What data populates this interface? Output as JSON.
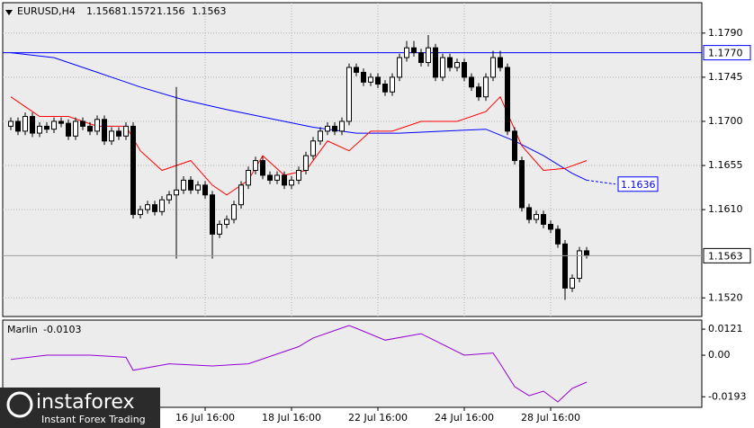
{
  "chart_data": [
    {
      "type": "candlestick",
      "title": "EURUSD,H4",
      "xlim": [
        -1.125,
        96
      ],
      "xticks": [
        {
          "value": 27,
          "label": "16 Jul 16:00"
        },
        {
          "value": 39,
          "label": "18 Jul 16:00"
        },
        {
          "value": 51,
          "label": "22 Jul 16:00"
        },
        {
          "value": 63,
          "label": "24 Jul 16:00"
        },
        {
          "value": 75,
          "label": "28 Jul 16:00"
        }
      ],
      "ylim": [
        1.1501,
        1.1821
      ],
      "yticks": [
        {
          "value": 1.179,
          "label": "1.1790"
        },
        1.1745,
        {
          "value": 1.17,
          "label": "1.1700"
        },
        1.1655,
        {
          "value": 1.161,
          "label": "1.1610"
        },
        {
          "value": 1.152,
          "label": "1.1520"
        }
      ],
      "grid": true,
      "up_color": "#ffffff",
      "down_color": "#000000",
      "open": [
        1.1695,
        1.17,
        1.169,
        1.1705,
        1.1688,
        1.1695,
        1.1692,
        1.17,
        1.1698,
        1.1685,
        1.17,
        1.1695,
        1.169,
        1.1702,
        1.168,
        1.169,
        1.1685,
        1.1695,
        1.1605,
        1.161,
        1.1615,
        1.1608,
        1.162,
        1.1625,
        1.163,
        1.164,
        1.163,
        1.1635,
        1.1625,
        1.1585,
        1.1595,
        1.16,
        1.1615,
        1.1635,
        1.165,
        1.166,
        1.1645,
        1.164,
        1.1645,
        1.1635,
        1.164,
        1.165,
        1.1665,
        1.168,
        1.169,
        1.1695,
        1.169,
        1.17,
        1.1755,
        1.175,
        1.174,
        1.1745,
        1.1738,
        1.173,
        1.1745,
        1.1765,
        1.1775,
        1.177,
        1.176,
        1.1775,
        1.1745,
        1.1765,
        1.1755,
        1.176,
        1.1745,
        1.1735,
        1.1725,
        1.1745,
        1.1765,
        1.1755,
        1.169,
        1.166,
        1.1612,
        1.16,
        1.1605,
        1.1595,
        1.159,
        1.1575,
        1.153,
        1.154,
        1.1568
      ],
      "high": [
        1.1704,
        1.1704,
        1.1709,
        1.1709,
        1.1699,
        1.1699,
        1.1704,
        1.1704,
        1.1702,
        1.1704,
        1.1704,
        1.1699,
        1.1706,
        1.1706,
        1.1694,
        1.1694,
        1.1699,
        1.1699,
        1.1614,
        1.1619,
        1.1619,
        1.1624,
        1.1629,
        1.1735,
        1.1644,
        1.1644,
        1.1639,
        1.1639,
        1.1629,
        1.1599,
        1.1604,
        1.1619,
        1.1639,
        1.1654,
        1.1664,
        1.1664,
        1.1649,
        1.1649,
        1.1649,
        1.1644,
        1.1654,
        1.1669,
        1.1684,
        1.1694,
        1.1699,
        1.1699,
        1.1704,
        1.1759,
        1.1759,
        1.1754,
        1.1749,
        1.1749,
        1.1742,
        1.1749,
        1.1769,
        1.1782,
        1.1782,
        1.1774,
        1.1788,
        1.1779,
        1.1769,
        1.1769,
        1.1764,
        1.1764,
        1.1749,
        1.1739,
        1.1749,
        1.1772,
        1.1772,
        1.1759,
        1.1694,
        1.1664,
        1.1616,
        1.1609,
        1.1609,
        1.1599,
        1.1594,
        1.1579,
        1.1544,
        1.1572,
        1.1572
      ],
      "low": [
        1.1691,
        1.1686,
        1.1686,
        1.1684,
        1.1684,
        1.1688,
        1.1688,
        1.1694,
        1.1681,
        1.1681,
        1.1691,
        1.1686,
        1.1686,
        1.1676,
        1.1676,
        1.1681,
        1.1681,
        1.1601,
        1.1601,
        1.1606,
        1.1604,
        1.1604,
        1.1616,
        1.156,
        1.1626,
        1.1626,
        1.1626,
        1.1621,
        1.156,
        1.1581,
        1.1591,
        1.1596,
        1.1611,
        1.1631,
        1.1646,
        1.1641,
        1.1636,
        1.1636,
        1.1631,
        1.1631,
        1.1636,
        1.1646,
        1.1661,
        1.1676,
        1.1686,
        1.1686,
        1.1686,
        1.1696,
        1.1746,
        1.1736,
        1.1736,
        1.1734,
        1.1726,
        1.1726,
        1.1741,
        1.1761,
        1.1766,
        1.1756,
        1.1756,
        1.1741,
        1.1741,
        1.1751,
        1.1751,
        1.1741,
        1.1731,
        1.1721,
        1.1721,
        1.1741,
        1.1751,
        1.1686,
        1.1656,
        1.1608,
        1.1596,
        1.1596,
        1.1591,
        1.1586,
        1.1571,
        1.1518,
        1.1526,
        1.1536,
        1.156
      ],
      "close": [
        1.17,
        1.169,
        1.1705,
        1.1688,
        1.1695,
        1.1692,
        1.17,
        1.1698,
        1.1685,
        1.17,
        1.1695,
        1.169,
        1.1702,
        1.168,
        1.169,
        1.1685,
        1.1695,
        1.1605,
        1.161,
        1.1615,
        1.1608,
        1.162,
        1.1625,
        1.163,
        1.164,
        1.163,
        1.1635,
        1.1625,
        1.1585,
        1.1595,
        1.16,
        1.1615,
        1.1635,
        1.165,
        1.166,
        1.1645,
        1.164,
        1.1645,
        1.1635,
        1.164,
        1.165,
        1.1665,
        1.168,
        1.169,
        1.1695,
        1.169,
        1.17,
        1.1755,
        1.175,
        1.174,
        1.1745,
        1.1738,
        1.173,
        1.1745,
        1.1765,
        1.1775,
        1.177,
        1.176,
        1.1775,
        1.1745,
        1.1765,
        1.1755,
        1.176,
        1.1745,
        1.1735,
        1.1725,
        1.1745,
        1.1765,
        1.1755,
        1.169,
        1.166,
        1.1612,
        1.16,
        1.1605,
        1.1595,
        1.159,
        1.1575,
        1.153,
        1.154,
        1.1568,
        1.1563
      ],
      "series": [
        {
          "color": "#0000ff",
          "x": [
            0,
            6,
            12,
            18,
            24,
            30,
            36,
            42,
            48,
            54,
            60,
            66,
            70,
            74,
            78,
            80
          ],
          "values": [
            1.177,
            1.1765,
            1.175,
            1.1735,
            1.1722,
            1.1712,
            1.1703,
            1.1694,
            1.1688,
            1.1688,
            1.169,
            1.1692,
            1.168,
            1.1665,
            1.1647,
            1.164
          ]
        },
        {
          "color": "#0000ff",
          "dashed": true,
          "x": [
            80,
            84
          ],
          "values": [
            1.164,
            1.1636
          ]
        },
        {
          "color": "#ff0000",
          "x": [
            0,
            4,
            8,
            12,
            16,
            18,
            21,
            25,
            28,
            30,
            33,
            35,
            38,
            41,
            44,
            47,
            50,
            53,
            57,
            62,
            66,
            68,
            71,
            74,
            77,
            80
          ],
          "values": [
            1.1725,
            1.1705,
            1.1705,
            1.1695,
            1.1695,
            1.167,
            1.165,
            1.166,
            1.1635,
            1.1625,
            1.164,
            1.1665,
            1.1645,
            1.165,
            1.168,
            1.167,
            1.169,
            1.169,
            1.17,
            1.17,
            1.171,
            1.1725,
            1.1675,
            1.165,
            1.1652,
            1.166
          ]
        }
      ],
      "hline": {
        "value": 1.177,
        "label": "1.1770",
        "color": "#0000ff"
      }
    },
    {
      "type": "line",
      "title": "Marlin",
      "current": -0.0103,
      "xlim": [
        -1.125,
        96
      ],
      "ylim": [
        -0.0242,
        0.0163
      ],
      "yticks": [
        0.0121,
        {
          "value": 0,
          "label": "0.00"
        },
        -0.0193
      ],
      "series": [
        {
          "color": "#9400d3",
          "x": [
            0,
            5,
            11,
            16,
            17,
            22,
            28,
            33,
            40,
            42,
            47,
            48,
            52,
            57,
            63,
            67,
            68,
            70,
            72,
            74,
            76,
            78,
            80
          ],
          "values": [
            -0.002,
            0,
            0,
            -0.001,
            -0.007,
            -0.004,
            -0.005,
            -0.004,
            0.004,
            0.008,
            0.0138,
            0.0125,
            0.007,
            0.01,
            0,
            0.001,
            -0.004,
            -0.0146,
            -0.0188,
            -0.0167,
            -0.0217,
            -0.0154,
            -0.0125
          ]
        }
      ]
    }
  ],
  "watermark": {
    "brand": "instaforex",
    "tagline": "Instant Forex Trading"
  }
}
